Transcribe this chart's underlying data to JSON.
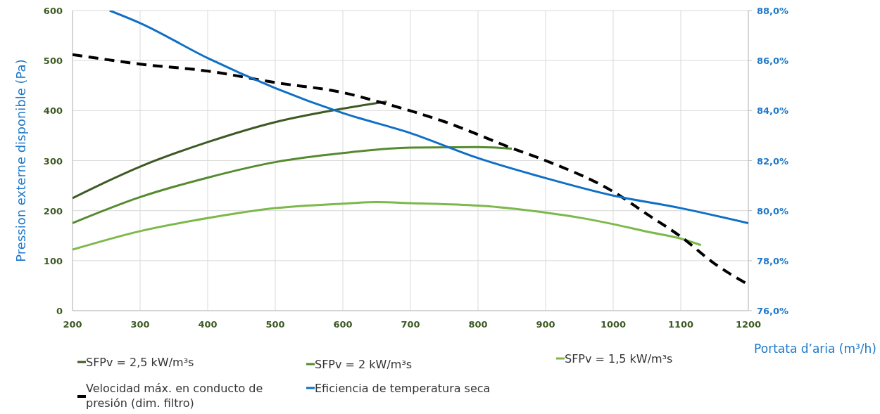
{
  "chart_data": {
    "type": "line",
    "xlabel": "Portata d’aria (m³/h)",
    "ylabel": "Pression externe disponible (Pa)",
    "xlim": [
      200,
      1200
    ],
    "xticks": [
      200,
      300,
      400,
      500,
      600,
      700,
      800,
      900,
      1000,
      1100,
      1200
    ],
    "ylim": [
      0,
      600
    ],
    "yticks": [
      0,
      100,
      200,
      300,
      400,
      500,
      600
    ],
    "y2lim": [
      76,
      88
    ],
    "y2ticks": [
      {
        "value": 76,
        "label": "76,0%"
      },
      {
        "value": 78,
        "label": "78,0%"
      },
      {
        "value": 80,
        "label": "80,0%"
      },
      {
        "value": 82,
        "label": "82,0%"
      },
      {
        "value": 84,
        "label": "84,0%"
      },
      {
        "value": 86,
        "label": "86,0%"
      },
      {
        "value": 88,
        "label": "88,0%"
      }
    ],
    "grid": true,
    "legend": "bottom",
    "marker": "none",
    "series": [
      {
        "name": "SFPv = 2,5 kW/m³s",
        "color": "#3d5a23",
        "x": [
          200,
          300,
          400,
          500,
          600,
          665
        ],
        "values": [
          225,
          288,
          337,
          377,
          404,
          418
        ]
      },
      {
        "name": "SFPv = 2 kW/m³s",
        "color": "#558b2f",
        "x": [
          200,
          300,
          400,
          500,
          600,
          700,
          800,
          850
        ],
        "values": [
          175,
          227,
          266,
          297,
          315,
          326,
          327,
          324
        ]
      },
      {
        "name": "SFPv = 1,5 kW/m³s",
        "color": "#7cb84a",
        "x": [
          200,
          300,
          400,
          500,
          600,
          650,
          700,
          800,
          830,
          900,
          950,
          1000,
          1050,
          1100,
          1130
        ],
        "values": [
          122,
          159,
          185,
          205,
          214,
          217,
          215,
          210,
          207,
          196,
          186,
          173,
          158,
          144,
          131
        ]
      },
      {
        "name": "Velocidad máx. en conducto de presión (dim. filtro)",
        "color": "#000000",
        "line_style": "dashed",
        "x": [
          200,
          300,
          400,
          500,
          600,
          660,
          750,
          850,
          900,
          1000,
          1050,
          1100,
          1150,
          1200
        ],
        "values": [
          512,
          493,
          479,
          456,
          436,
          415,
          378,
          325,
          300,
          238,
          193,
          148,
          94,
          52
        ]
      },
      {
        "name": "Eficiencia de temperatura seca",
        "color": "#0f6fc6",
        "axis": "y2",
        "x": [
          255,
          300,
          400,
          500,
          600,
          700,
          800,
          900,
          1000,
          1100,
          1200
        ],
        "values": [
          88.0,
          87.5,
          86.1,
          84.9,
          83.9,
          83.1,
          82.1,
          81.3,
          80.6,
          80.1,
          79.5
        ]
      }
    ]
  }
}
